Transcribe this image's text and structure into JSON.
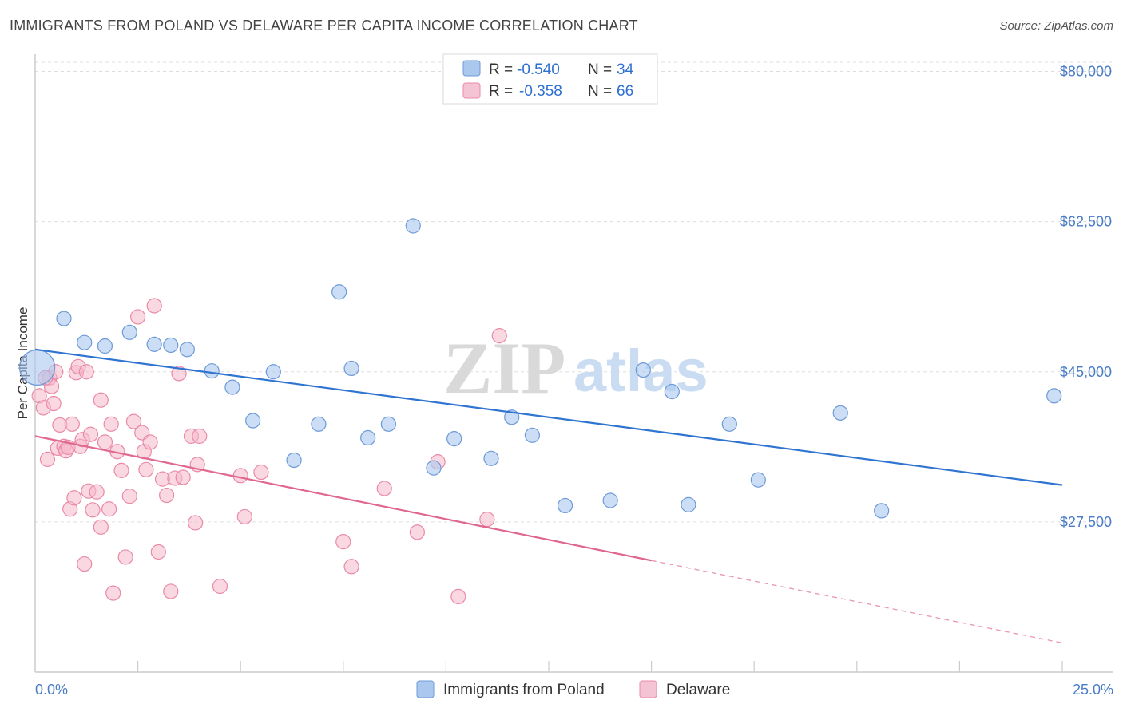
{
  "header": {
    "title": "IMMIGRANTS FROM POLAND VS DELAWARE PER CAPITA INCOME CORRELATION CHART",
    "source": "Source: ZipAtlas.com"
  },
  "watermark": {
    "zip": "ZIP",
    "atlas": "atlas"
  },
  "legend": {
    "rows": [
      {
        "r_label": "R =",
        "r_value": "-0.540",
        "n_label": "N =",
        "n_value": "34"
      },
      {
        "r_label": "R =",
        "r_value": "-0.358",
        "n_label": "N =",
        "n_value": "66"
      }
    ]
  },
  "bottom_legend": {
    "items": [
      {
        "label": "Immigrants from Poland"
      },
      {
        "label": "Delaware"
      }
    ]
  },
  "colors": {
    "blue_fill": "#aac8ee",
    "blue_stroke": "#6d9ad8",
    "blue_line": "#2f74d0",
    "pink_fill": "#f5b8cb",
    "pink_stroke": "#e98aa7",
    "pink_line": "#e06890",
    "grid": "#dddddd",
    "tick_label": "#4a7cc7"
  },
  "chart_data": {
    "type": "scatter",
    "title": "IMMIGRANTS FROM POLAND VS DELAWARE PER CAPITA INCOME CORRELATION CHART",
    "xlabel": "",
    "ylabel": "Per Capita Income",
    "xlim": [
      0,
      25
    ],
    "ylim": [
      10000,
      82000
    ],
    "x_tick_labels": [
      "0.0%",
      "25.0%"
    ],
    "y_ticks": [
      27500,
      45000,
      62500,
      80000
    ],
    "y_tick_labels": [
      "$27,500",
      "$45,000",
      "$62,500",
      "$80,000"
    ],
    "grid": true,
    "legend_position": "top-center",
    "series": [
      {
        "name": "Immigrants from Poland",
        "r": -0.54,
        "n": 34,
        "trend": {
          "x0": 0,
          "y0": 47600,
          "x1": 25,
          "y1": 31800
        },
        "points": [
          [
            0.05,
            45500
          ],
          [
            0.7,
            51200
          ],
          [
            1.2,
            48400
          ],
          [
            1.7,
            48000
          ],
          [
            2.3,
            49600
          ],
          [
            2.9,
            48200
          ],
          [
            3.3,
            48100
          ],
          [
            3.7,
            47600
          ],
          [
            4.3,
            45100
          ],
          [
            4.8,
            43200
          ],
          [
            5.3,
            39300
          ],
          [
            5.8,
            45000
          ],
          [
            6.3,
            34700
          ],
          [
            7.4,
            54300
          ],
          [
            6.9,
            38900
          ],
          [
            7.7,
            45400
          ],
          [
            8.1,
            37300
          ],
          [
            8.6,
            38900
          ],
          [
            9.2,
            62000
          ],
          [
            9.7,
            33800
          ],
          [
            10.2,
            37200
          ],
          [
            11.1,
            34900
          ],
          [
            11.6,
            39700
          ],
          [
            12.1,
            37600
          ],
          [
            12.9,
            29400
          ],
          [
            14.0,
            30000
          ],
          [
            14.8,
            45200
          ],
          [
            15.5,
            42700
          ],
          [
            15.9,
            29500
          ],
          [
            16.9,
            38900
          ],
          [
            17.6,
            32400
          ],
          [
            19.6,
            40200
          ],
          [
            20.6,
            28800
          ],
          [
            24.8,
            42200
          ]
        ]
      },
      {
        "name": "Delaware",
        "r": -0.358,
        "n": 66,
        "trend": {
          "x0": 0,
          "y0": 37500,
          "x1": 15,
          "y1": 23000,
          "dashed_to_x": 25,
          "dashed_to_y": 13400
        },
        "points": [
          [
            0.1,
            42200
          ],
          [
            0.2,
            40800
          ],
          [
            0.3,
            34800
          ],
          [
            0.35,
            44300
          ],
          [
            0.4,
            43300
          ],
          [
            0.45,
            41300
          ],
          [
            0.5,
            45000
          ],
          [
            0.55,
            36100
          ],
          [
            0.6,
            38800
          ],
          [
            0.7,
            36300
          ],
          [
            0.75,
            35800
          ],
          [
            0.8,
            36200
          ],
          [
            0.85,
            29000
          ],
          [
            0.9,
            38900
          ],
          [
            0.95,
            30300
          ],
          [
            1.0,
            44900
          ],
          [
            1.05,
            45600
          ],
          [
            1.1,
            36300
          ],
          [
            1.15,
            37100
          ],
          [
            1.2,
            22600
          ],
          [
            1.3,
            31100
          ],
          [
            1.35,
            37700
          ],
          [
            1.4,
            28900
          ],
          [
            1.5,
            31000
          ],
          [
            1.6,
            26900
          ],
          [
            1.7,
            36800
          ],
          [
            1.8,
            29000
          ],
          [
            1.85,
            38900
          ],
          [
            1.9,
            19200
          ],
          [
            2.0,
            35700
          ],
          [
            2.1,
            33500
          ],
          [
            2.2,
            23400
          ],
          [
            2.3,
            30500
          ],
          [
            2.4,
            39200
          ],
          [
            2.5,
            51400
          ],
          [
            2.6,
            37900
          ],
          [
            2.65,
            35700
          ],
          [
            2.7,
            33600
          ],
          [
            2.8,
            36800
          ],
          [
            3.0,
            24000
          ],
          [
            3.1,
            32500
          ],
          [
            3.2,
            30600
          ],
          [
            3.3,
            19400
          ],
          [
            3.4,
            32600
          ],
          [
            3.5,
            44800
          ],
          [
            3.6,
            32700
          ],
          [
            3.8,
            37500
          ],
          [
            3.9,
            27400
          ],
          [
            3.95,
            34200
          ],
          [
            4.0,
            37500
          ],
          [
            4.5,
            20000
          ],
          [
            5.0,
            32900
          ],
          [
            5.1,
            28100
          ],
          [
            5.5,
            33300
          ],
          [
            7.5,
            25200
          ],
          [
            7.7,
            22300
          ],
          [
            8.5,
            31400
          ],
          [
            9.3,
            26300
          ],
          [
            9.8,
            34500
          ],
          [
            10.3,
            18800
          ],
          [
            11.0,
            27800
          ],
          [
            11.3,
            49200
          ],
          [
            1.6,
            41700
          ],
          [
            2.9,
            52700
          ],
          [
            0.25,
            44300
          ],
          [
            1.25,
            45000
          ]
        ]
      }
    ]
  }
}
